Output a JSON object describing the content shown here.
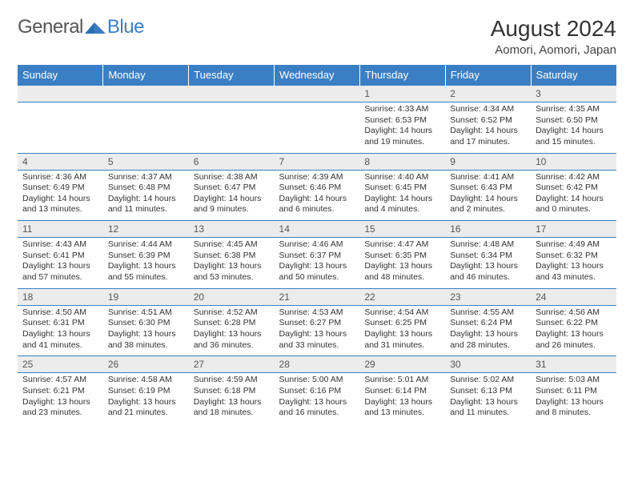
{
  "logo": {
    "general": "General",
    "blue": "Blue"
  },
  "title": "August 2024",
  "location": "Aomori, Aomori, Japan",
  "weekday_headers": [
    "Sunday",
    "Monday",
    "Tuesday",
    "Wednesday",
    "Thursday",
    "Friday",
    "Saturday"
  ],
  "colors": {
    "header_bg": "#3a7fc4",
    "header_text": "#ffffff",
    "daynum_bg": "#ececec",
    "text": "#333333",
    "border": "#3a7fc4",
    "page_bg": "#ffffff"
  },
  "font_sizes": {
    "title": 28,
    "subtitle": 15,
    "weekday": 13,
    "daynum": 12,
    "details": 10.5
  },
  "weeks": [
    [
      null,
      null,
      null,
      null,
      {
        "n": "1",
        "sunrise": "Sunrise: 4:33 AM",
        "sunset": "Sunset: 6:53 PM",
        "day1": "Daylight: 14 hours",
        "day2": "and 19 minutes."
      },
      {
        "n": "2",
        "sunrise": "Sunrise: 4:34 AM",
        "sunset": "Sunset: 6:52 PM",
        "day1": "Daylight: 14 hours",
        "day2": "and 17 minutes."
      },
      {
        "n": "3",
        "sunrise": "Sunrise: 4:35 AM",
        "sunset": "Sunset: 6:50 PM",
        "day1": "Daylight: 14 hours",
        "day2": "and 15 minutes."
      }
    ],
    [
      {
        "n": "4",
        "sunrise": "Sunrise: 4:36 AM",
        "sunset": "Sunset: 6:49 PM",
        "day1": "Daylight: 14 hours",
        "day2": "and 13 minutes."
      },
      {
        "n": "5",
        "sunrise": "Sunrise: 4:37 AM",
        "sunset": "Sunset: 6:48 PM",
        "day1": "Daylight: 14 hours",
        "day2": "and 11 minutes."
      },
      {
        "n": "6",
        "sunrise": "Sunrise: 4:38 AM",
        "sunset": "Sunset: 6:47 PM",
        "day1": "Daylight: 14 hours",
        "day2": "and 9 minutes."
      },
      {
        "n": "7",
        "sunrise": "Sunrise: 4:39 AM",
        "sunset": "Sunset: 6:46 PM",
        "day1": "Daylight: 14 hours",
        "day2": "and 6 minutes."
      },
      {
        "n": "8",
        "sunrise": "Sunrise: 4:40 AM",
        "sunset": "Sunset: 6:45 PM",
        "day1": "Daylight: 14 hours",
        "day2": "and 4 minutes."
      },
      {
        "n": "9",
        "sunrise": "Sunrise: 4:41 AM",
        "sunset": "Sunset: 6:43 PM",
        "day1": "Daylight: 14 hours",
        "day2": "and 2 minutes."
      },
      {
        "n": "10",
        "sunrise": "Sunrise: 4:42 AM",
        "sunset": "Sunset: 6:42 PM",
        "day1": "Daylight: 14 hours",
        "day2": "and 0 minutes."
      }
    ],
    [
      {
        "n": "11",
        "sunrise": "Sunrise: 4:43 AM",
        "sunset": "Sunset: 6:41 PM",
        "day1": "Daylight: 13 hours",
        "day2": "and 57 minutes."
      },
      {
        "n": "12",
        "sunrise": "Sunrise: 4:44 AM",
        "sunset": "Sunset: 6:39 PM",
        "day1": "Daylight: 13 hours",
        "day2": "and 55 minutes."
      },
      {
        "n": "13",
        "sunrise": "Sunrise: 4:45 AM",
        "sunset": "Sunset: 6:38 PM",
        "day1": "Daylight: 13 hours",
        "day2": "and 53 minutes."
      },
      {
        "n": "14",
        "sunrise": "Sunrise: 4:46 AM",
        "sunset": "Sunset: 6:37 PM",
        "day1": "Daylight: 13 hours",
        "day2": "and 50 minutes."
      },
      {
        "n": "15",
        "sunrise": "Sunrise: 4:47 AM",
        "sunset": "Sunset: 6:35 PM",
        "day1": "Daylight: 13 hours",
        "day2": "and 48 minutes."
      },
      {
        "n": "16",
        "sunrise": "Sunrise: 4:48 AM",
        "sunset": "Sunset: 6:34 PM",
        "day1": "Daylight: 13 hours",
        "day2": "and 46 minutes."
      },
      {
        "n": "17",
        "sunrise": "Sunrise: 4:49 AM",
        "sunset": "Sunset: 6:32 PM",
        "day1": "Daylight: 13 hours",
        "day2": "and 43 minutes."
      }
    ],
    [
      {
        "n": "18",
        "sunrise": "Sunrise: 4:50 AM",
        "sunset": "Sunset: 6:31 PM",
        "day1": "Daylight: 13 hours",
        "day2": "and 41 minutes."
      },
      {
        "n": "19",
        "sunrise": "Sunrise: 4:51 AM",
        "sunset": "Sunset: 6:30 PM",
        "day1": "Daylight: 13 hours",
        "day2": "and 38 minutes."
      },
      {
        "n": "20",
        "sunrise": "Sunrise: 4:52 AM",
        "sunset": "Sunset: 6:28 PM",
        "day1": "Daylight: 13 hours",
        "day2": "and 36 minutes."
      },
      {
        "n": "21",
        "sunrise": "Sunrise: 4:53 AM",
        "sunset": "Sunset: 6:27 PM",
        "day1": "Daylight: 13 hours",
        "day2": "and 33 minutes."
      },
      {
        "n": "22",
        "sunrise": "Sunrise: 4:54 AM",
        "sunset": "Sunset: 6:25 PM",
        "day1": "Daylight: 13 hours",
        "day2": "and 31 minutes."
      },
      {
        "n": "23",
        "sunrise": "Sunrise: 4:55 AM",
        "sunset": "Sunset: 6:24 PM",
        "day1": "Daylight: 13 hours",
        "day2": "and 28 minutes."
      },
      {
        "n": "24",
        "sunrise": "Sunrise: 4:56 AM",
        "sunset": "Sunset: 6:22 PM",
        "day1": "Daylight: 13 hours",
        "day2": "and 26 minutes."
      }
    ],
    [
      {
        "n": "25",
        "sunrise": "Sunrise: 4:57 AM",
        "sunset": "Sunset: 6:21 PM",
        "day1": "Daylight: 13 hours",
        "day2": "and 23 minutes."
      },
      {
        "n": "26",
        "sunrise": "Sunrise: 4:58 AM",
        "sunset": "Sunset: 6:19 PM",
        "day1": "Daylight: 13 hours",
        "day2": "and 21 minutes."
      },
      {
        "n": "27",
        "sunrise": "Sunrise: 4:59 AM",
        "sunset": "Sunset: 6:18 PM",
        "day1": "Daylight: 13 hours",
        "day2": "and 18 minutes."
      },
      {
        "n": "28",
        "sunrise": "Sunrise: 5:00 AM",
        "sunset": "Sunset: 6:16 PM",
        "day1": "Daylight: 13 hours",
        "day2": "and 16 minutes."
      },
      {
        "n": "29",
        "sunrise": "Sunrise: 5:01 AM",
        "sunset": "Sunset: 6:14 PM",
        "day1": "Daylight: 13 hours",
        "day2": "and 13 minutes."
      },
      {
        "n": "30",
        "sunrise": "Sunrise: 5:02 AM",
        "sunset": "Sunset: 6:13 PM",
        "day1": "Daylight: 13 hours",
        "day2": "and 11 minutes."
      },
      {
        "n": "31",
        "sunrise": "Sunrise: 5:03 AM",
        "sunset": "Sunset: 6:11 PM",
        "day1": "Daylight: 13 hours",
        "day2": "and 8 minutes."
      }
    ]
  ]
}
